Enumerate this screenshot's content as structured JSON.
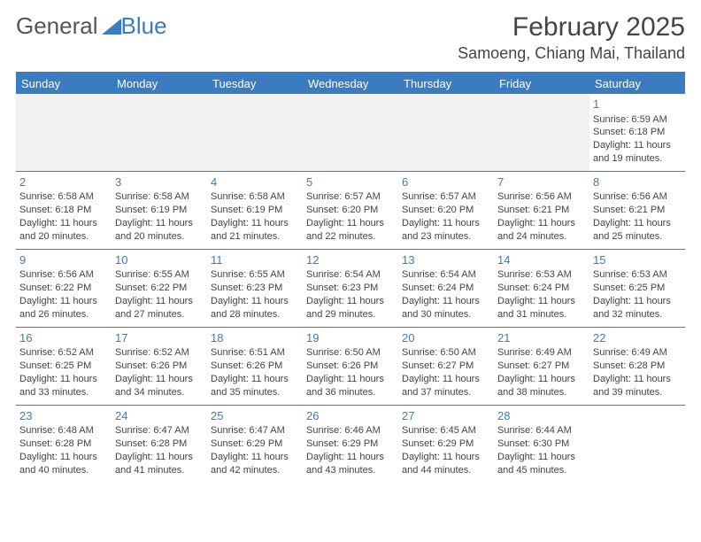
{
  "logo": {
    "text_general": "General",
    "text_blue": "Blue"
  },
  "title": "February 2025",
  "location": "Samoeng, Chiang Mai, Thailand",
  "colors": {
    "accent": "#3b7bbf",
    "header_text": "#ffffff",
    "body_text": "#444444",
    "row_shade": "#f1f1f1",
    "background": "#ffffff"
  },
  "day_headers": [
    "Sunday",
    "Monday",
    "Tuesday",
    "Wednesday",
    "Thursday",
    "Friday",
    "Saturday"
  ],
  "weeks": [
    [
      null,
      null,
      null,
      null,
      null,
      null,
      {
        "n": "1",
        "sr": "Sunrise: 6:59 AM",
        "ss": "Sunset: 6:18 PM",
        "d1": "Daylight: 11 hours",
        "d2": "and 19 minutes."
      }
    ],
    [
      {
        "n": "2",
        "sr": "Sunrise: 6:58 AM",
        "ss": "Sunset: 6:18 PM",
        "d1": "Daylight: 11 hours",
        "d2": "and 20 minutes."
      },
      {
        "n": "3",
        "sr": "Sunrise: 6:58 AM",
        "ss": "Sunset: 6:19 PM",
        "d1": "Daylight: 11 hours",
        "d2": "and 20 minutes."
      },
      {
        "n": "4",
        "sr": "Sunrise: 6:58 AM",
        "ss": "Sunset: 6:19 PM",
        "d1": "Daylight: 11 hours",
        "d2": "and 21 minutes."
      },
      {
        "n": "5",
        "sr": "Sunrise: 6:57 AM",
        "ss": "Sunset: 6:20 PM",
        "d1": "Daylight: 11 hours",
        "d2": "and 22 minutes."
      },
      {
        "n": "6",
        "sr": "Sunrise: 6:57 AM",
        "ss": "Sunset: 6:20 PM",
        "d1": "Daylight: 11 hours",
        "d2": "and 23 minutes."
      },
      {
        "n": "7",
        "sr": "Sunrise: 6:56 AM",
        "ss": "Sunset: 6:21 PM",
        "d1": "Daylight: 11 hours",
        "d2": "and 24 minutes."
      },
      {
        "n": "8",
        "sr": "Sunrise: 6:56 AM",
        "ss": "Sunset: 6:21 PM",
        "d1": "Daylight: 11 hours",
        "d2": "and 25 minutes."
      }
    ],
    [
      {
        "n": "9",
        "sr": "Sunrise: 6:56 AM",
        "ss": "Sunset: 6:22 PM",
        "d1": "Daylight: 11 hours",
        "d2": "and 26 minutes."
      },
      {
        "n": "10",
        "sr": "Sunrise: 6:55 AM",
        "ss": "Sunset: 6:22 PM",
        "d1": "Daylight: 11 hours",
        "d2": "and 27 minutes."
      },
      {
        "n": "11",
        "sr": "Sunrise: 6:55 AM",
        "ss": "Sunset: 6:23 PM",
        "d1": "Daylight: 11 hours",
        "d2": "and 28 minutes."
      },
      {
        "n": "12",
        "sr": "Sunrise: 6:54 AM",
        "ss": "Sunset: 6:23 PM",
        "d1": "Daylight: 11 hours",
        "d2": "and 29 minutes."
      },
      {
        "n": "13",
        "sr": "Sunrise: 6:54 AM",
        "ss": "Sunset: 6:24 PM",
        "d1": "Daylight: 11 hours",
        "d2": "and 30 minutes."
      },
      {
        "n": "14",
        "sr": "Sunrise: 6:53 AM",
        "ss": "Sunset: 6:24 PM",
        "d1": "Daylight: 11 hours",
        "d2": "and 31 minutes."
      },
      {
        "n": "15",
        "sr": "Sunrise: 6:53 AM",
        "ss": "Sunset: 6:25 PM",
        "d1": "Daylight: 11 hours",
        "d2": "and 32 minutes."
      }
    ],
    [
      {
        "n": "16",
        "sr": "Sunrise: 6:52 AM",
        "ss": "Sunset: 6:25 PM",
        "d1": "Daylight: 11 hours",
        "d2": "and 33 minutes."
      },
      {
        "n": "17",
        "sr": "Sunrise: 6:52 AM",
        "ss": "Sunset: 6:26 PM",
        "d1": "Daylight: 11 hours",
        "d2": "and 34 minutes."
      },
      {
        "n": "18",
        "sr": "Sunrise: 6:51 AM",
        "ss": "Sunset: 6:26 PM",
        "d1": "Daylight: 11 hours",
        "d2": "and 35 minutes."
      },
      {
        "n": "19",
        "sr": "Sunrise: 6:50 AM",
        "ss": "Sunset: 6:26 PM",
        "d1": "Daylight: 11 hours",
        "d2": "and 36 minutes."
      },
      {
        "n": "20",
        "sr": "Sunrise: 6:50 AM",
        "ss": "Sunset: 6:27 PM",
        "d1": "Daylight: 11 hours",
        "d2": "and 37 minutes."
      },
      {
        "n": "21",
        "sr": "Sunrise: 6:49 AM",
        "ss": "Sunset: 6:27 PM",
        "d1": "Daylight: 11 hours",
        "d2": "and 38 minutes."
      },
      {
        "n": "22",
        "sr": "Sunrise: 6:49 AM",
        "ss": "Sunset: 6:28 PM",
        "d1": "Daylight: 11 hours",
        "d2": "and 39 minutes."
      }
    ],
    [
      {
        "n": "23",
        "sr": "Sunrise: 6:48 AM",
        "ss": "Sunset: 6:28 PM",
        "d1": "Daylight: 11 hours",
        "d2": "and 40 minutes."
      },
      {
        "n": "24",
        "sr": "Sunrise: 6:47 AM",
        "ss": "Sunset: 6:28 PM",
        "d1": "Daylight: 11 hours",
        "d2": "and 41 minutes."
      },
      {
        "n": "25",
        "sr": "Sunrise: 6:47 AM",
        "ss": "Sunset: 6:29 PM",
        "d1": "Daylight: 11 hours",
        "d2": "and 42 minutes."
      },
      {
        "n": "26",
        "sr": "Sunrise: 6:46 AM",
        "ss": "Sunset: 6:29 PM",
        "d1": "Daylight: 11 hours",
        "d2": "and 43 minutes."
      },
      {
        "n": "27",
        "sr": "Sunrise: 6:45 AM",
        "ss": "Sunset: 6:29 PM",
        "d1": "Daylight: 11 hours",
        "d2": "and 44 minutes."
      },
      {
        "n": "28",
        "sr": "Sunrise: 6:44 AM",
        "ss": "Sunset: 6:30 PM",
        "d1": "Daylight: 11 hours",
        "d2": "and 45 minutes."
      },
      null
    ]
  ]
}
